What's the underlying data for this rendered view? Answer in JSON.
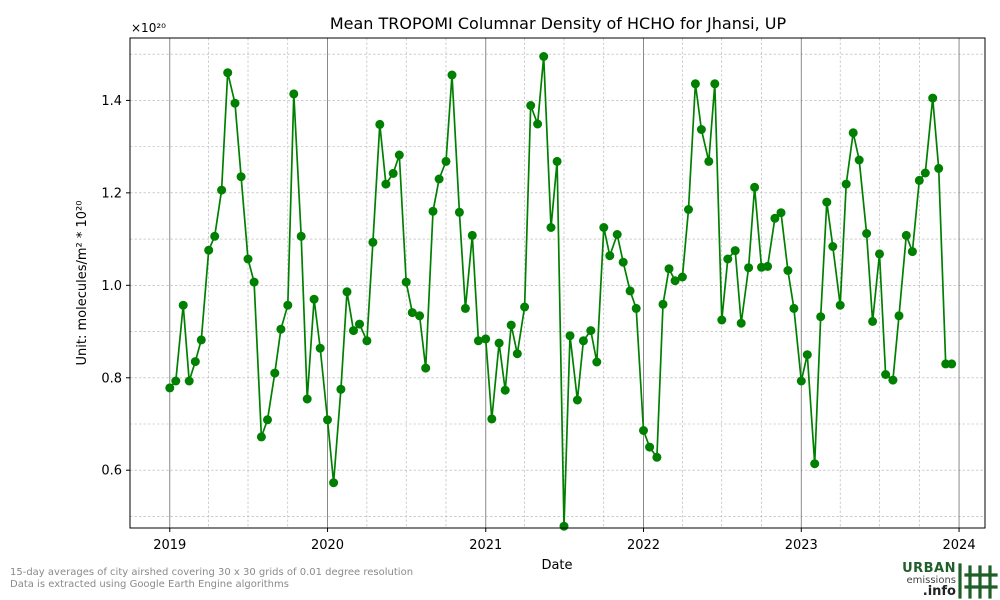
{
  "title": "Mean TROPOMI Columnar Density of HCHO for Jhansi, UP",
  "xlabel": "Date",
  "ylabel_text": "Unit: molecules/m² * 10²⁰",
  "offset_text": "×10²⁰",
  "footnote_line1": "15-day averages of city airshed covering 30 x 30 grids of 0.01 degree resolution",
  "footnote_line2": "Data is extracted using Google Earth Engine algorithms",
  "logo": {
    "line1": "URBAN",
    "line2": "emissions",
    "line3": ".info",
    "icon": "hash-grid-icon"
  },
  "colors": {
    "series": "#008000",
    "grid": "#b0b0b0",
    "year_line": "#808080",
    "logo_green": "#1f5f28"
  },
  "chart_data": {
    "type": "line",
    "title": "Mean TROPOMI Columnar Density of HCHO for Jhansi, UP",
    "xlabel": "Date",
    "ylabel": "Unit: molecules/m² * 10²⁰",
    "y_scale_note": "×10²⁰",
    "xlim": [
      "2018-10-01",
      "2024-03-01"
    ],
    "ylim": [
      0.475,
      1.535
    ],
    "x_ticks": [
      {
        "date": "2019-01-01",
        "label": "2019"
      },
      {
        "date": "2020-01-01",
        "label": "2020"
      },
      {
        "date": "2021-01-01",
        "label": "2021"
      },
      {
        "date": "2022-01-01",
        "label": "2022"
      },
      {
        "date": "2023-01-01",
        "label": "2023"
      },
      {
        "date": "2024-01-01",
        "label": "2024"
      }
    ],
    "y_ticks": [
      0.6,
      0.8,
      1.0,
      1.2,
      1.4
    ],
    "grid": true,
    "marker": "circle",
    "series": [
      {
        "points": [
          {
            "x": "2019-01-01",
            "y": 0.778
          },
          {
            "x": "2019-01-15",
            "y": 0.793
          },
          {
            "x": "2019-02-01",
            "y": 0.957
          },
          {
            "x": "2019-02-15",
            "y": 0.793
          },
          {
            "x": "2019-03-01",
            "y": 0.835
          },
          {
            "x": "2019-03-15",
            "y": 0.882
          },
          {
            "x": "2019-04-01",
            "y": 1.076
          },
          {
            "x": "2019-04-15",
            "y": 1.106
          },
          {
            "x": "2019-05-01",
            "y": 1.206
          },
          {
            "x": "2019-05-15",
            "y": 1.46
          },
          {
            "x": "2019-06-01",
            "y": 1.394
          },
          {
            "x": "2019-06-15",
            "y": 1.235
          },
          {
            "x": "2019-07-01",
            "y": 1.057
          },
          {
            "x": "2019-07-15",
            "y": 1.007
          },
          {
            "x": "2019-08-01",
            "y": 0.672
          },
          {
            "x": "2019-08-15",
            "y": 0.709
          },
          {
            "x": "2019-09-01",
            "y": 0.81
          },
          {
            "x": "2019-09-15",
            "y": 0.905
          },
          {
            "x": "2019-10-01",
            "y": 0.957
          },
          {
            "x": "2019-10-15",
            "y": 1.414
          },
          {
            "x": "2019-11-01",
            "y": 1.106
          },
          {
            "x": "2019-11-15",
            "y": 0.754
          },
          {
            "x": "2019-12-01",
            "y": 0.97
          },
          {
            "x": "2019-12-15",
            "y": 0.864
          },
          {
            "x": "2020-01-01",
            "y": 0.709
          },
          {
            "x": "2020-01-15",
            "y": 0.573
          },
          {
            "x": "2020-02-01",
            "y": 0.775
          },
          {
            "x": "2020-02-15",
            "y": 0.986
          },
          {
            "x": "2020-03-01",
            "y": 0.902
          },
          {
            "x": "2020-03-15",
            "y": 0.916
          },
          {
            "x": "2020-04-01",
            "y": 0.88
          },
          {
            "x": "2020-04-15",
            "y": 1.093
          },
          {
            "x": "2020-05-01",
            "y": 1.348
          },
          {
            "x": "2020-05-15",
            "y": 1.219
          },
          {
            "x": "2020-06-01",
            "y": 1.242
          },
          {
            "x": "2020-06-15",
            "y": 1.282
          },
          {
            "x": "2020-07-01",
            "y": 1.007
          },
          {
            "x": "2020-07-15",
            "y": 0.941
          },
          {
            "x": "2020-08-01",
            "y": 0.934
          },
          {
            "x": "2020-08-15",
            "y": 0.821
          },
          {
            "x": "2020-09-01",
            "y": 1.16
          },
          {
            "x": "2020-09-15",
            "y": 1.23
          },
          {
            "x": "2020-10-01",
            "y": 1.268
          },
          {
            "x": "2020-10-15",
            "y": 1.455
          },
          {
            "x": "2020-11-01",
            "y": 1.158
          },
          {
            "x": "2020-11-15",
            "y": 0.95
          },
          {
            "x": "2020-12-01",
            "y": 1.108
          },
          {
            "x": "2020-12-15",
            "y": 0.88
          },
          {
            "x": "2021-01-01",
            "y": 0.884
          },
          {
            "x": "2021-01-15",
            "y": 0.711
          },
          {
            "x": "2021-02-01",
            "y": 0.875
          },
          {
            "x": "2021-02-15",
            "y": 0.773
          },
          {
            "x": "2021-03-01",
            "y": 0.914
          },
          {
            "x": "2021-03-15",
            "y": 0.852
          },
          {
            "x": "2021-04-01",
            "y": 0.953
          },
          {
            "x": "2021-04-15",
            "y": 1.389
          },
          {
            "x": "2021-05-01",
            "y": 1.349
          },
          {
            "x": "2021-05-15",
            "y": 1.495
          },
          {
            "x": "2021-06-01",
            "y": 1.125
          },
          {
            "x": "2021-06-15",
            "y": 1.268
          },
          {
            "x": "2021-07-01",
            "y": 0.479
          },
          {
            "x": "2021-07-15",
            "y": 0.891
          },
          {
            "x": "2021-08-01",
            "y": 0.752
          },
          {
            "x": "2021-08-15",
            "y": 0.88
          },
          {
            "x": "2021-09-01",
            "y": 0.902
          },
          {
            "x": "2021-09-15",
            "y": 0.834
          },
          {
            "x": "2021-10-01",
            "y": 1.125
          },
          {
            "x": "2021-10-15",
            "y": 1.064
          },
          {
            "x": "2021-11-01",
            "y": 1.11
          },
          {
            "x": "2021-11-15",
            "y": 1.05
          },
          {
            "x": "2021-12-01",
            "y": 0.988
          },
          {
            "x": "2021-12-15",
            "y": 0.95
          },
          {
            "x": "2022-01-01",
            "y": 0.686
          },
          {
            "x": "2022-01-15",
            "y": 0.65
          },
          {
            "x": "2022-02-01",
            "y": 0.628
          },
          {
            "x": "2022-02-15",
            "y": 0.959
          },
          {
            "x": "2022-03-01",
            "y": 1.036
          },
          {
            "x": "2022-03-15",
            "y": 1.01
          },
          {
            "x": "2022-04-01",
            "y": 1.018
          },
          {
            "x": "2022-04-15",
            "y": 1.164
          },
          {
            "x": "2022-05-01",
            "y": 1.436
          },
          {
            "x": "2022-05-15",
            "y": 1.337
          },
          {
            "x": "2022-06-01",
            "y": 1.268
          },
          {
            "x": "2022-06-15",
            "y": 1.436
          },
          {
            "x": "2022-07-01",
            "y": 0.925
          },
          {
            "x": "2022-07-15",
            "y": 1.057
          },
          {
            "x": "2022-08-01",
            "y": 1.075
          },
          {
            "x": "2022-08-15",
            "y": 0.918
          },
          {
            "x": "2022-09-01",
            "y": 1.038
          },
          {
            "x": "2022-09-15",
            "y": 1.212
          },
          {
            "x": "2022-10-01",
            "y": 1.039
          },
          {
            "x": "2022-10-15",
            "y": 1.041
          },
          {
            "x": "2022-11-01",
            "y": 1.145
          },
          {
            "x": "2022-11-15",
            "y": 1.157
          },
          {
            "x": "2022-12-01",
            "y": 1.032
          },
          {
            "x": "2022-12-15",
            "y": 0.95
          },
          {
            "x": "2023-01-01",
            "y": 0.793
          },
          {
            "x": "2023-01-15",
            "y": 0.85
          },
          {
            "x": "2023-02-01",
            "y": 0.614
          },
          {
            "x": "2023-02-15",
            "y": 0.932
          },
          {
            "x": "2023-03-01",
            "y": 1.18
          },
          {
            "x": "2023-03-15",
            "y": 1.084
          },
          {
            "x": "2023-04-01",
            "y": 0.957
          },
          {
            "x": "2023-04-15",
            "y": 1.219
          },
          {
            "x": "2023-05-01",
            "y": 1.33
          },
          {
            "x": "2023-05-15",
            "y": 1.271
          },
          {
            "x": "2023-06-01",
            "y": 1.112
          },
          {
            "x": "2023-06-15",
            "y": 0.922
          },
          {
            "x": "2023-07-01",
            "y": 1.068
          },
          {
            "x": "2023-07-15",
            "y": 0.807
          },
          {
            "x": "2023-08-01",
            "y": 0.795
          },
          {
            "x": "2023-08-15",
            "y": 0.934
          },
          {
            "x": "2023-09-01",
            "y": 1.108
          },
          {
            "x": "2023-09-15",
            "y": 1.073
          },
          {
            "x": "2023-10-01",
            "y": 1.227
          },
          {
            "x": "2023-10-15",
            "y": 1.243
          },
          {
            "x": "2023-11-01",
            "y": 1.405
          },
          {
            "x": "2023-11-15",
            "y": 1.253
          },
          {
            "x": "2023-12-01",
            "y": 0.83
          },
          {
            "x": "2023-12-15",
            "y": 0.83
          }
        ]
      }
    ]
  }
}
